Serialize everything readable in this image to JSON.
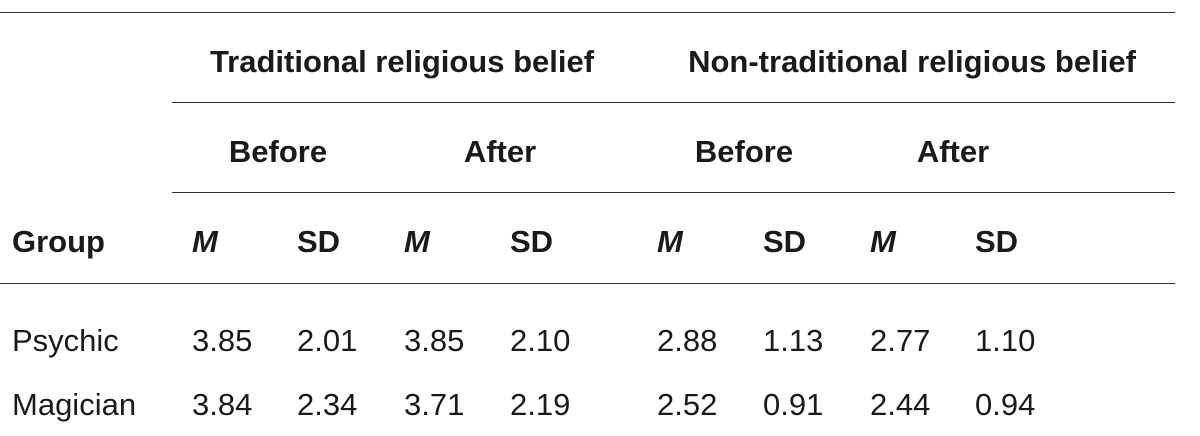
{
  "table": {
    "group_headers": [
      "Traditional religious belief",
      "Non-traditional religious belief"
    ],
    "sub_headers": [
      "Before",
      "After",
      "Before",
      "After"
    ],
    "column_headers": [
      "Group",
      "M",
      "SD",
      "M",
      "SD",
      "M",
      "SD",
      "M",
      "SD"
    ],
    "rows": [
      [
        "Psychic",
        "3.85",
        "2.01",
        "3.85",
        "2.10",
        "2.88",
        "1.13",
        "2.77",
        "1.10"
      ],
      [
        "Magician",
        "3.84",
        "2.34",
        "3.71",
        "2.19",
        "2.52",
        "0.91",
        "2.44",
        "0.94"
      ]
    ]
  }
}
